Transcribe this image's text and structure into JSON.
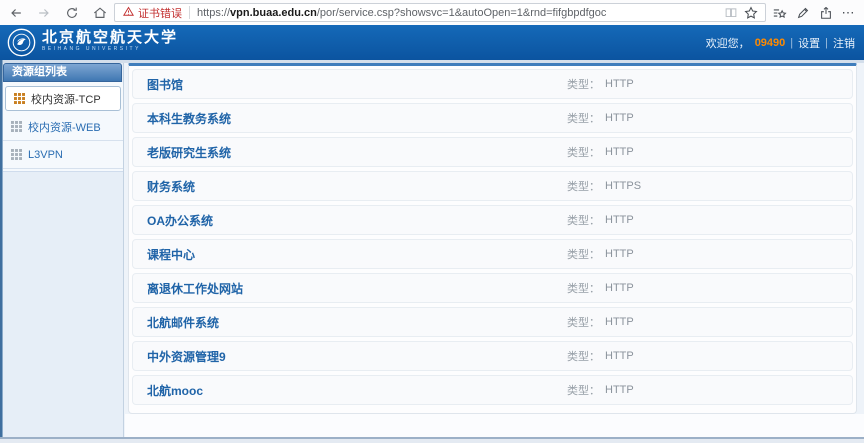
{
  "browser": {
    "cert_error": "证书错误",
    "url_prefix": "https://",
    "url_domain": "vpn.buaa.edu.cn",
    "url_path": "/por/service.csp?showsvc=1&autoOpen=1&rnd=fifgbpdfgoc",
    "more_label": "⋯"
  },
  "header": {
    "brand_cn": "北京航空航天大学",
    "brand_en": "BEIHANG UNIVERSITY",
    "welcome": "欢迎您，",
    "username": "09490",
    "username_color": "#ff8a00",
    "separator": "|",
    "settings": "设置",
    "logout": "注销"
  },
  "sidebar": {
    "title": "资源组列表",
    "items": [
      {
        "label": "校内资源-TCP",
        "selected": true
      },
      {
        "label": "校内资源-WEB",
        "selected": false
      },
      {
        "label": "L3VPN",
        "selected": false
      }
    ]
  },
  "resources": {
    "type_label": "类型：",
    "rows": [
      {
        "name": "图书馆",
        "type": "HTTP"
      },
      {
        "name": "本科生教务系统",
        "type": "HTTP"
      },
      {
        "name": "老版研究生系统",
        "type": "HTTP"
      },
      {
        "name": "财务系统",
        "type": "HTTPS"
      },
      {
        "name": "OA办公系统",
        "type": "HTTP"
      },
      {
        "name": "课程中心",
        "type": "HTTP"
      },
      {
        "name": "离退休工作处网站",
        "type": "HTTP"
      },
      {
        "name": "北航邮件系统",
        "type": "HTTP"
      },
      {
        "name": "中外资源管理9",
        "type": "HTTP"
      },
      {
        "name": "北航mooc",
        "type": "HTTP"
      }
    ]
  },
  "icons": {
    "back": "arrow-left",
    "forward": "arrow-right",
    "refresh": "circular-arrow",
    "home": "house",
    "certificate_warning": "red-warning-triangle",
    "reading_view": "open-book",
    "favorite": "star-outline",
    "favorites_hub": "star-with-lines",
    "web_note": "pen",
    "share": "box-with-up-arrow",
    "more": "three-dots",
    "resource_group": "grid-3x3",
    "logo": "beihang-university-round-seal"
  },
  "colors": {
    "header_blue_top": "#1569b8",
    "header_blue_bottom": "#0b54a0",
    "link_blue": "#2064a8",
    "sidebar_panel": "#e6eef7",
    "selected_icon_orange": "#c97f20",
    "cert_error_red": "#c22f2f"
  }
}
